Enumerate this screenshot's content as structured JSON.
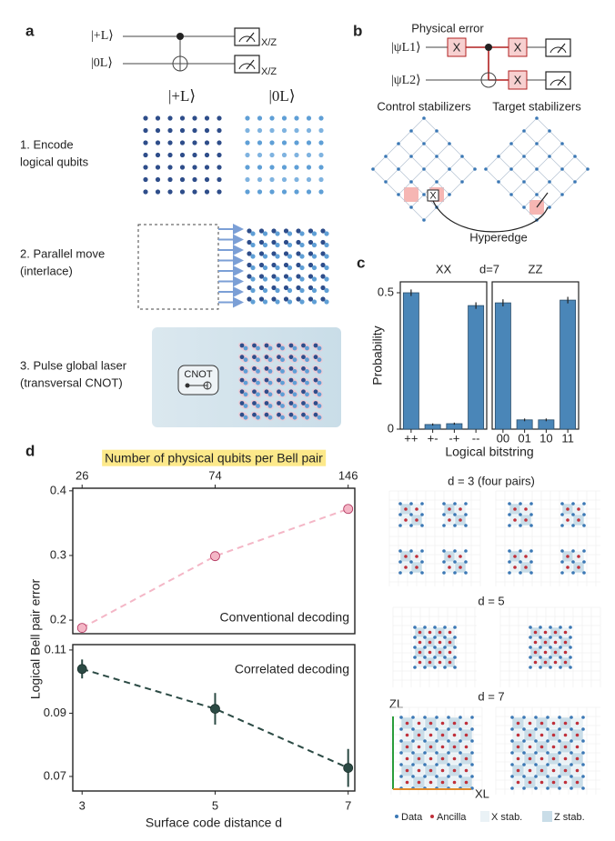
{
  "panel_labels": {
    "a": "a",
    "b": "b",
    "c": "c",
    "d": "d"
  },
  "panel_a": {
    "kets": [
      "|+L⟩",
      "|0L⟩"
    ],
    "measure_basis": "X/Z",
    "steps": [
      [
        "1. Encode",
        "logical qubits"
      ],
      [
        "2. Parallel move",
        "(interlace)"
      ],
      [
        "3. Pulse global laser",
        "(transversal CNOT)"
      ]
    ],
    "gate": "CNOT"
  },
  "panel_b": {
    "error_label": "Physical error",
    "kets": [
      "|ψL1⟩",
      "|ψL2⟩"
    ],
    "gate": "X",
    "stabilizers": [
      "Control stabilizers",
      "Target stabilizers"
    ],
    "hyperedge": "Hyperedge"
  },
  "chart_data": [
    {
      "type": "bar",
      "title": "XX",
      "annotation": "d=7",
      "ylabel": "Probability",
      "xlabel": "Logical bitstring",
      "categories": [
        "++",
        "+-",
        "-+",
        "--"
      ],
      "values": [
        0.5,
        0.017,
        0.02,
        0.453
      ],
      "errors": [
        0.012,
        0.004,
        0.004,
        0.012
      ],
      "color": "#4a86b8",
      "ylim": [
        0,
        0.54
      ],
      "yticks": [
        0,
        0.5
      ]
    },
    {
      "type": "bar",
      "title": "ZZ",
      "categories": [
        "00",
        "01",
        "10",
        "11"
      ],
      "values": [
        0.463,
        0.034,
        0.034,
        0.473
      ],
      "errors": [
        0.013,
        0.005,
        0.005,
        0.012
      ],
      "color": "#4a86b8",
      "ylim": [
        0,
        0.54
      ]
    },
    {
      "type": "line",
      "x2label": "Number of physical qubits per Bell pair",
      "ylabel": "Logical Bell pair error",
      "annotation": "Conventional decoding",
      "x": [
        3,
        5,
        7
      ],
      "values": [
        0.188,
        0.299,
        0.372
      ],
      "color": "#f4b6c6",
      "marker_color": "#f4b6c6",
      "marker_edge": "#b0305a",
      "xlim": [
        2.86,
        7.1
      ],
      "ylim": [
        0.179,
        0.404
      ],
      "yticks": [
        0.2,
        0.3,
        0.4
      ],
      "x2ticks": [
        {
          "value": 3,
          "label": "26"
        },
        {
          "value": 5,
          "label": "74"
        },
        {
          "value": 7,
          "label": "146"
        }
      ]
    },
    {
      "type": "line",
      "xlabel": "Surface code distance d",
      "annotation": "Correlated decoding",
      "x": [
        3,
        5,
        7
      ],
      "values": [
        0.104,
        0.0914,
        0.0727
      ],
      "errors": [
        0.003,
        0.005,
        0.006
      ],
      "color": "#2b4a44",
      "marker_color": "#2b4a44",
      "marker_edge": "#1a2e2a",
      "xlim": [
        2.86,
        7.1
      ],
      "ylim": [
        0.0654,
        0.1117
      ],
      "yticks": [
        0.07,
        0.09,
        0.11
      ],
      "xticks": [
        3,
        5,
        7
      ]
    }
  ],
  "panel_d_layouts": {
    "titles": [
      "d = 3 (four pairs)",
      "d = 5",
      "d = 7"
    ],
    "logicals": [
      "ZL",
      "XL"
    ],
    "legend": [
      "Data",
      "Ancilla",
      "X stab.",
      "Z stab."
    ]
  }
}
